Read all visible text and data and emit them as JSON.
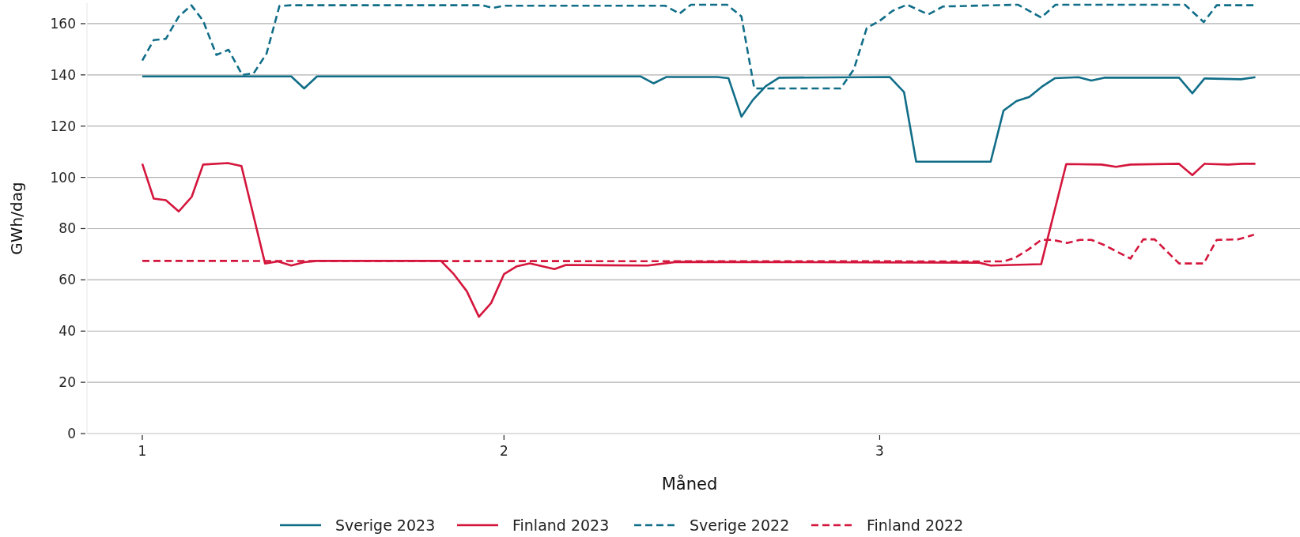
{
  "chart_data": {
    "type": "line",
    "xlabel": "Måned",
    "ylabel": "GWh/dag",
    "xlim": [
      0.85,
      4.14
    ],
    "xticks": [
      1,
      {
        "value": 1.981,
        "label": "2"
      },
      3
    ],
    "ylim": [
      0,
      168
    ],
    "yticks": [
      0,
      20,
      40,
      60,
      80,
      100,
      120,
      140,
      160
    ],
    "grid": "y",
    "legend": "bottom",
    "series": [
      {
        "name": "Sverige 2023",
        "color": "#116e88",
        "line_style": "solid",
        "x": [
          1.0,
          1.404,
          1.439,
          1.474,
          2.352,
          2.387,
          2.422,
          2.559,
          2.59,
          2.625,
          2.656,
          2.691,
          2.727,
          3.027,
          3.066,
          3.099,
          3.301,
          3.336,
          3.371,
          3.406,
          3.442,
          3.475,
          3.539,
          3.574,
          3.609,
          3.812,
          3.848,
          3.881,
          3.98,
          4.019
        ],
        "values": [
          139.4,
          139.4,
          134.7,
          139.4,
          139.4,
          136.7,
          139.2,
          139.2,
          138.7,
          123.7,
          130.2,
          135.6,
          138.9,
          139.2,
          133.3,
          106.1,
          106.1,
          126.1,
          129.8,
          131.4,
          135.6,
          138.7,
          139.1,
          137.8,
          138.9,
          138.9,
          132.8,
          138.6,
          138.3,
          139.1
        ]
      },
      {
        "name": "Finland 2023",
        "color": "#d4163c",
        "line_style": "solid",
        "x": [
          1.0,
          1.031,
          1.064,
          1.099,
          1.134,
          1.165,
          1.232,
          1.269,
          1.333,
          1.368,
          1.404,
          1.439,
          1.474,
          1.81,
          1.845,
          1.88,
          1.913,
          1.946,
          1.981,
          2.016,
          2.051,
          2.118,
          2.149,
          2.371,
          2.449,
          3.27,
          3.301,
          3.438,
          3.506,
          3.602,
          3.641,
          3.68,
          3.812,
          3.848,
          3.881,
          3.945,
          3.984,
          4.019
        ],
        "values": [
          105.3,
          91.7,
          91.1,
          86.7,
          92.4,
          105,
          105.6,
          104.4,
          66.4,
          67.2,
          65.6,
          66.9,
          67.4,
          67.4,
          62.2,
          55.6,
          45.6,
          50.9,
          62.2,
          65.3,
          66.4,
          64.2,
          65.8,
          65.6,
          67,
          66.7,
          65.6,
          66.1,
          105.2,
          105,
          104.1,
          105,
          105.3,
          100.9,
          105.3,
          105,
          105.3,
          105.3
        ]
      },
      {
        "name": "Sverige 2022",
        "color": "#116e88",
        "line_style": "dashed",
        "x": [
          1.0,
          1.031,
          1.064,
          1.099,
          1.133,
          1.165,
          1.201,
          1.234,
          1.271,
          1.302,
          1.337,
          1.372,
          1.404,
          1.923,
          1.95,
          1.981,
          2.418,
          2.457,
          2.488,
          2.586,
          2.625,
          2.66,
          2.688,
          2.894,
          2.93,
          2.965,
          3.0,
          3.035,
          3.074,
          3.132,
          3.172,
          3.375,
          3.438,
          3.477,
          3.828,
          3.879,
          3.914,
          4.015
        ],
        "values": [
          145.6,
          153.6,
          154.1,
          162.8,
          167.2,
          161.1,
          147.8,
          149.8,
          140,
          140.6,
          148.3,
          166.9,
          167.2,
          167.2,
          166.1,
          167,
          167,
          163.9,
          167.4,
          167.4,
          162.8,
          134.7,
          134.7,
          134.7,
          142.2,
          158.3,
          161.1,
          165,
          167.4,
          163.6,
          166.7,
          167.4,
          162.4,
          167.4,
          167.4,
          160.6,
          167.2,
          167.2
        ]
      },
      {
        "name": "Finland 2022",
        "color": "#d4163c",
        "line_style": "dashed",
        "x": [
          1.0,
          3.336,
          3.367,
          3.402,
          3.438,
          3.469,
          3.508,
          3.543,
          3.574,
          3.609,
          3.68,
          3.715,
          3.746,
          3.812,
          3.879,
          3.914,
          3.973,
          4.015
        ],
        "values": [
          67.4,
          67.2,
          68.6,
          71.7,
          75.6,
          75.6,
          74.4,
          75.6,
          75.6,
          73.6,
          68.3,
          75.8,
          75.8,
          66.4,
          66.4,
          75.6,
          75.8,
          77.6
        ]
      }
    ]
  }
}
